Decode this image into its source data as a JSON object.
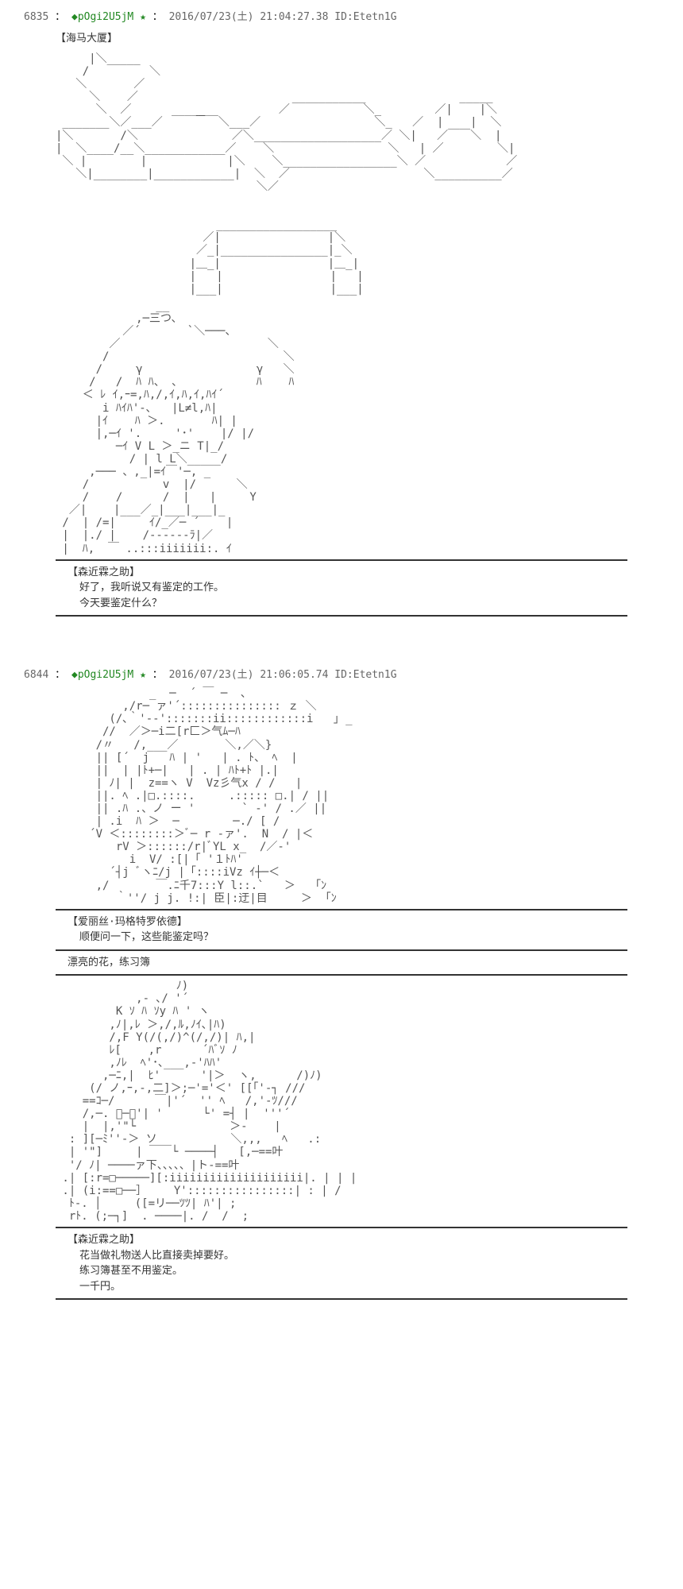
{
  "posts": [
    {
      "number": "6835",
      "tripcode": "pOgi2U5jM",
      "date": "2016/07/23(土) 21:04:27.38",
      "id": "ID:Etetn1G",
      "location": "【海马大厦】",
      "dialogues": [
        {
          "speaker": "【森近霖之助】",
          "lines": [
            "好了，我听说又有鉴定的工作。",
            "今天要鉴定什么？"
          ]
        }
      ]
    },
    {
      "number": "6844",
      "tripcode": "pOgi2U5jM",
      "date": "2016/07/23(土) 21:06:05.74",
      "id": "ID:Etetn1G",
      "dialogues": [
        {
          "speaker": "【爱丽丝·玛格特罗依德】",
          "lines": [
            "顺便问一下，这些能鉴定吗？"
          ]
        },
        {
          "speaker": "",
          "lines": [
            "漂亮的花，练习簿"
          ]
        },
        {
          "speaker": "【森近霖之助】",
          "lines": [
            "花当做礼物送人比直接卖掉要好。",
            "练习簿甚至不用鉴定。",
            "一千円。"
          ]
        }
      ]
    }
  ]
}
